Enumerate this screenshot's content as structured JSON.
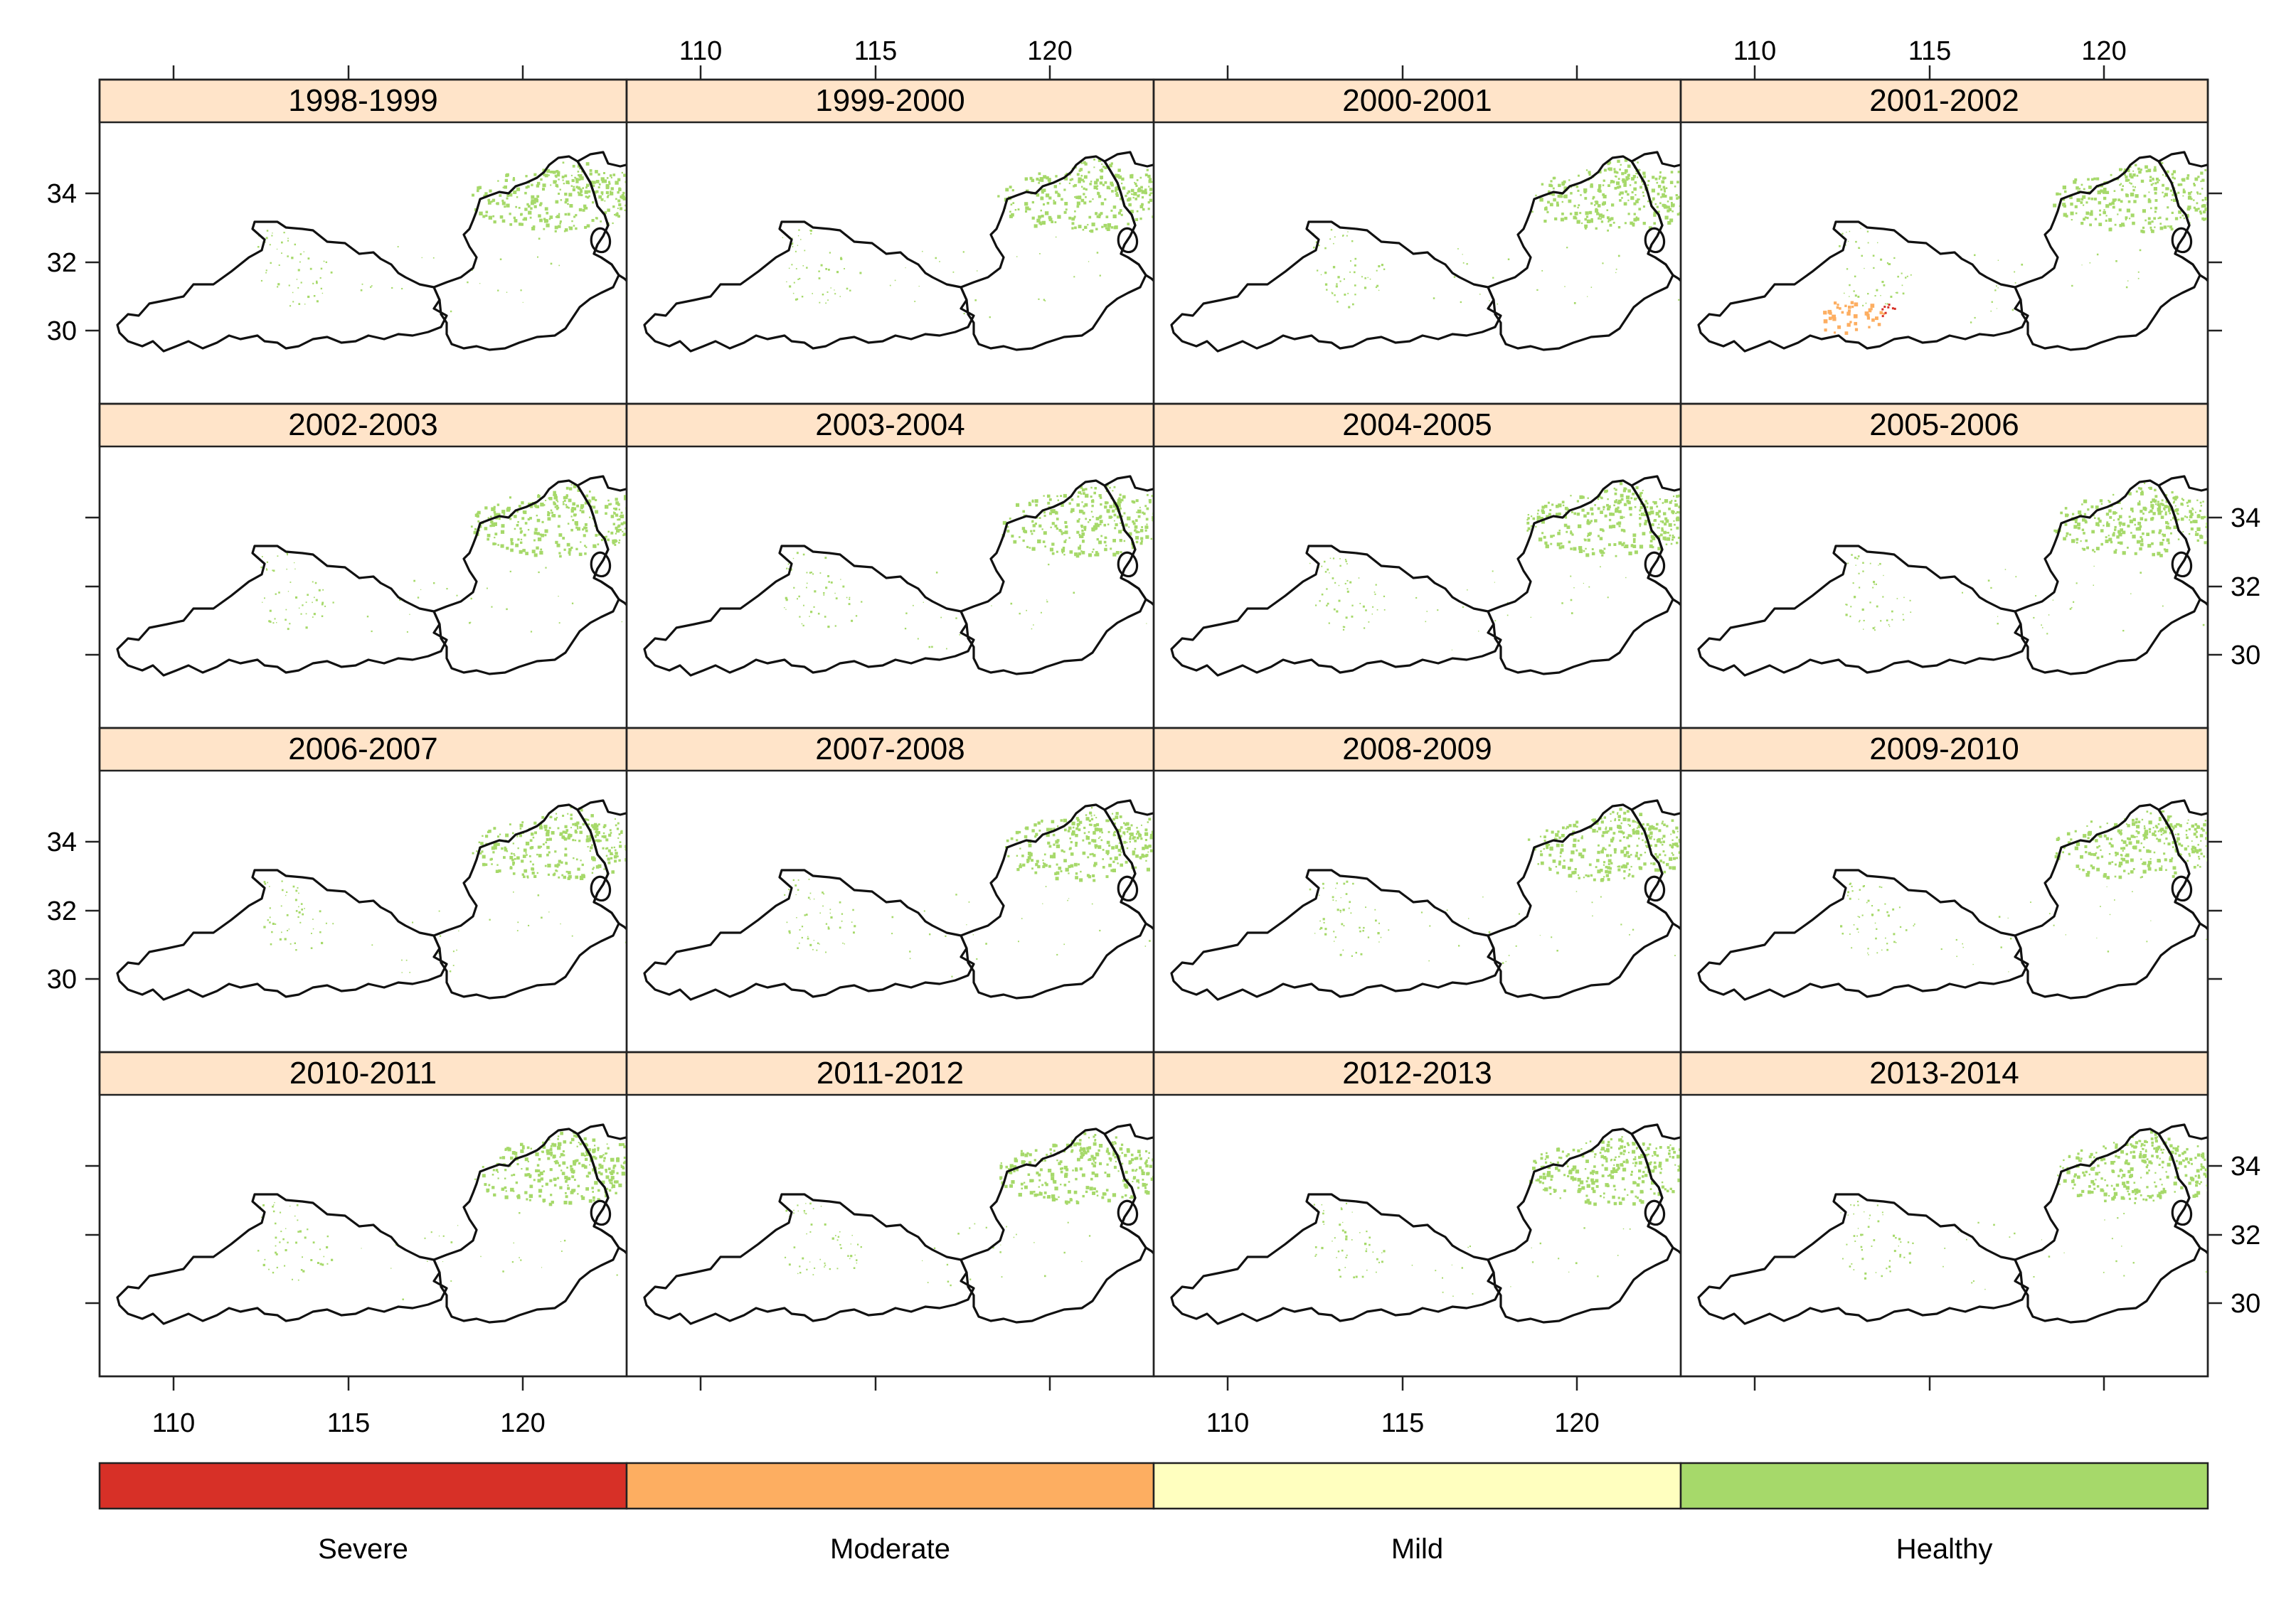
{
  "figure": {
    "panel_titles": [
      "1998-1999",
      "1999-2000",
      "2000-2001",
      "2001-2002",
      "2002-2003",
      "2003-2004",
      "2004-2005",
      "2005-2006",
      "2006-2007",
      "2007-2008",
      "2008-2009",
      "2009-2010",
      "2010-2011",
      "2011-2012",
      "2012-2013",
      "2013-2014"
    ],
    "x_ticks": [
      "110",
      "115",
      "120"
    ],
    "y_ticks": [
      "34",
      "32",
      "30"
    ],
    "legend": [
      {
        "label": "Severe",
        "color": "#d73027"
      },
      {
        "label": "Moderate",
        "color": "#fdae61"
      },
      {
        "label": "Mild",
        "color": "#ffffbf"
      },
      {
        "label": "Healthy",
        "color": "#a6d96a"
      }
    ],
    "strip_color": "#ffe4c9",
    "moderate_patch_panel": "2001-2002"
  }
}
